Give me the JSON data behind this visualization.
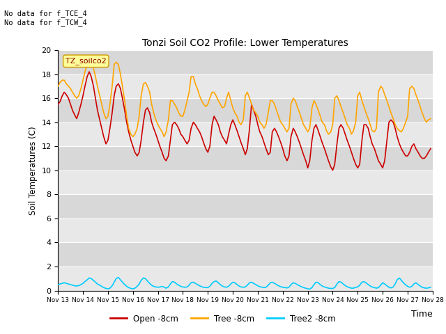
{
  "title": "Tonzi Soil CO2 Profile: Lower Temperatures",
  "xlabel": "Time",
  "ylabel": "Soil Temperatures (C)",
  "top_left_text": "No data for f_TCE_4\nNo data for f_TCW_4",
  "legend_label_text": "TZ_soilco2",
  "xlim_days": [
    13,
    28
  ],
  "ylim": [
    0,
    20
  ],
  "yticks": [
    0,
    2,
    4,
    6,
    8,
    10,
    12,
    14,
    16,
    18,
    20
  ],
  "xtick_labels": [
    "Nov 13",
    "Nov 14",
    "Nov 15",
    "Nov 16",
    "Nov 17",
    "Nov 18",
    "Nov 19",
    "Nov 20",
    "Nov 21",
    "Nov 22",
    "Nov 23",
    "Nov 24",
    "Nov 25",
    "Nov 26",
    "Nov 27",
    "Nov 28"
  ],
  "plot_bg_color": "#e8e8e8",
  "fig_bg_color": "#ffffff",
  "grid_color": "#ffffff",
  "stripe_color1": "#e8e8e8",
  "stripe_color2": "#d8d8d8",
  "open_color": "#cc0000",
  "tree_color": "#ffa500",
  "tree2_color": "#00ccff",
  "open_label": "Open -8cm",
  "tree_label": "Tree -8cm",
  "tree2_label": "Tree2 -8cm",
  "open_x": [
    13.0,
    13.08,
    13.17,
    13.25,
    13.33,
    13.42,
    13.5,
    13.58,
    13.67,
    13.75,
    13.83,
    13.92,
    14.0,
    14.08,
    14.17,
    14.25,
    14.33,
    14.42,
    14.5,
    14.58,
    14.67,
    14.75,
    14.83,
    14.92,
    15.0,
    15.08,
    15.17,
    15.25,
    15.33,
    15.42,
    15.5,
    15.58,
    15.67,
    15.75,
    15.83,
    15.92,
    16.0,
    16.08,
    16.17,
    16.25,
    16.33,
    16.42,
    16.5,
    16.58,
    16.67,
    16.75,
    16.83,
    16.92,
    17.0,
    17.08,
    17.17,
    17.25,
    17.33,
    17.42,
    17.5,
    17.58,
    17.67,
    17.75,
    17.83,
    17.92,
    18.0,
    18.08,
    18.17,
    18.25,
    18.33,
    18.42,
    18.5,
    18.58,
    18.67,
    18.75,
    18.83,
    18.92,
    19.0,
    19.08,
    19.17,
    19.25,
    19.33,
    19.42,
    19.5,
    19.58,
    19.67,
    19.75,
    19.83,
    19.92,
    20.0,
    20.08,
    20.17,
    20.25,
    20.33,
    20.42,
    20.5,
    20.58,
    20.67,
    20.75,
    20.83,
    20.92,
    21.0,
    21.08,
    21.17,
    21.25,
    21.33,
    21.42,
    21.5,
    21.58,
    21.67,
    21.75,
    21.83,
    21.92,
    22.0,
    22.08,
    22.17,
    22.25,
    22.33,
    22.42,
    22.5,
    22.58,
    22.67,
    22.75,
    22.83,
    22.92,
    23.0,
    23.08,
    23.17,
    23.25,
    23.33,
    23.42,
    23.5,
    23.58,
    23.67,
    23.75,
    23.83,
    23.92,
    24.0,
    24.08,
    24.17,
    24.25,
    24.33,
    24.42,
    24.5,
    24.58,
    24.67,
    24.75,
    24.83,
    24.92,
    25.0,
    25.08,
    25.17,
    25.25,
    25.33,
    25.42,
    25.5,
    25.58,
    25.67,
    25.75,
    25.83,
    25.92,
    26.0,
    26.08,
    26.17,
    26.25,
    26.33,
    26.42,
    26.5,
    26.58,
    26.67,
    26.75,
    26.83,
    26.92,
    27.0,
    27.08,
    27.17,
    27.25,
    27.33,
    27.42,
    27.5,
    27.58,
    27.67,
    27.75,
    27.83,
    27.92
  ],
  "open_y": [
    15.5,
    15.7,
    16.2,
    16.5,
    16.3,
    16.0,
    15.5,
    15.0,
    14.6,
    14.3,
    14.8,
    15.5,
    16.2,
    17.0,
    17.8,
    18.2,
    17.8,
    17.0,
    16.0,
    15.0,
    14.2,
    13.5,
    12.8,
    12.2,
    12.5,
    13.5,
    14.8,
    16.2,
    17.0,
    17.2,
    16.8,
    16.0,
    15.0,
    14.0,
    13.2,
    12.5,
    12.0,
    11.5,
    11.2,
    11.5,
    12.5,
    14.0,
    15.0,
    15.2,
    14.8,
    14.0,
    13.5,
    13.0,
    12.5,
    12.0,
    11.5,
    11.0,
    10.8,
    11.2,
    12.5,
    13.8,
    14.0,
    13.8,
    13.5,
    13.0,
    12.8,
    12.5,
    12.2,
    12.5,
    13.5,
    14.0,
    13.8,
    13.5,
    13.2,
    12.8,
    12.3,
    11.8,
    11.5,
    12.0,
    13.8,
    14.5,
    14.2,
    13.8,
    13.2,
    12.8,
    12.5,
    12.2,
    13.0,
    13.8,
    14.2,
    13.8,
    13.3,
    12.8,
    12.3,
    11.8,
    11.3,
    11.8,
    13.5,
    15.5,
    15.0,
    14.5,
    13.8,
    13.2,
    12.8,
    12.3,
    11.8,
    11.3,
    11.5,
    13.2,
    13.5,
    13.2,
    12.8,
    12.3,
    11.8,
    11.2,
    10.8,
    11.2,
    12.8,
    13.5,
    13.2,
    12.8,
    12.3,
    11.8,
    11.3,
    10.8,
    10.2,
    10.8,
    12.5,
    13.5,
    13.8,
    13.3,
    12.8,
    12.3,
    11.8,
    11.3,
    10.8,
    10.3,
    10.0,
    10.5,
    12.2,
    13.5,
    13.8,
    13.5,
    13.0,
    12.5,
    12.0,
    11.5,
    11.0,
    10.5,
    10.2,
    10.5,
    12.5,
    13.8,
    13.8,
    13.5,
    12.8,
    12.2,
    11.8,
    11.3,
    10.8,
    10.5,
    10.2,
    10.8,
    12.5,
    14.0,
    14.2,
    14.0,
    13.5,
    12.8,
    12.2,
    11.8,
    11.5,
    11.2,
    11.2,
    11.5,
    12.0,
    12.2,
    11.8,
    11.5,
    11.2,
    11.0,
    11.0,
    11.2,
    11.5,
    11.8
  ],
  "tree_x": [
    13.0,
    13.08,
    13.17,
    13.25,
    13.33,
    13.42,
    13.5,
    13.58,
    13.67,
    13.75,
    13.83,
    13.92,
    14.0,
    14.08,
    14.17,
    14.25,
    14.33,
    14.42,
    14.5,
    14.58,
    14.67,
    14.75,
    14.83,
    14.92,
    15.0,
    15.08,
    15.17,
    15.25,
    15.33,
    15.42,
    15.5,
    15.58,
    15.67,
    15.75,
    15.83,
    15.92,
    16.0,
    16.08,
    16.17,
    16.25,
    16.33,
    16.42,
    16.5,
    16.58,
    16.67,
    16.75,
    16.83,
    16.92,
    17.0,
    17.08,
    17.17,
    17.25,
    17.33,
    17.42,
    17.5,
    17.58,
    17.67,
    17.75,
    17.83,
    17.92,
    18.0,
    18.08,
    18.17,
    18.25,
    18.33,
    18.42,
    18.5,
    18.58,
    18.67,
    18.75,
    18.83,
    18.92,
    19.0,
    19.08,
    19.17,
    19.25,
    19.33,
    19.42,
    19.5,
    19.58,
    19.67,
    19.75,
    19.83,
    19.92,
    20.0,
    20.08,
    20.17,
    20.25,
    20.33,
    20.42,
    20.5,
    20.58,
    20.67,
    20.75,
    20.83,
    20.92,
    21.0,
    21.08,
    21.17,
    21.25,
    21.33,
    21.42,
    21.5,
    21.58,
    21.67,
    21.75,
    21.83,
    21.92,
    22.0,
    22.08,
    22.17,
    22.25,
    22.33,
    22.42,
    22.5,
    22.58,
    22.67,
    22.75,
    22.83,
    22.92,
    23.0,
    23.08,
    23.17,
    23.25,
    23.33,
    23.42,
    23.5,
    23.58,
    23.67,
    23.75,
    23.83,
    23.92,
    24.0,
    24.08,
    24.17,
    24.25,
    24.33,
    24.42,
    24.5,
    24.58,
    24.67,
    24.75,
    24.83,
    24.92,
    25.0,
    25.08,
    25.17,
    25.25,
    25.33,
    25.42,
    25.5,
    25.58,
    25.67,
    25.75,
    25.83,
    25.92,
    26.0,
    26.08,
    26.17,
    26.25,
    26.33,
    26.42,
    26.5,
    26.58,
    26.67,
    26.75,
    26.83,
    26.92,
    27.0,
    27.08,
    27.17,
    27.25,
    27.33,
    27.42,
    27.5,
    27.58,
    27.67,
    27.75,
    27.83,
    27.92
  ],
  "tree_y": [
    17.0,
    17.3,
    17.5,
    17.5,
    17.2,
    17.0,
    16.8,
    16.5,
    16.2,
    16.0,
    16.2,
    16.8,
    17.5,
    18.2,
    18.8,
    19.2,
    19.0,
    18.5,
    17.8,
    17.0,
    16.2,
    15.5,
    14.8,
    14.3,
    14.5,
    15.5,
    17.0,
    18.8,
    19.0,
    18.8,
    18.0,
    17.0,
    15.8,
    14.5,
    13.5,
    13.0,
    12.8,
    13.0,
    13.5,
    14.5,
    16.2,
    17.2,
    17.3,
    17.0,
    16.5,
    15.5,
    14.8,
    14.2,
    13.8,
    13.5,
    13.2,
    12.8,
    13.2,
    14.2,
    15.8,
    15.8,
    15.5,
    15.2,
    14.8,
    14.5,
    14.5,
    15.0,
    15.8,
    16.5,
    17.8,
    17.8,
    17.2,
    16.8,
    16.2,
    15.8,
    15.5,
    15.3,
    15.5,
    16.0,
    16.5,
    16.5,
    16.2,
    15.8,
    15.5,
    15.2,
    15.3,
    16.0,
    16.5,
    15.8,
    15.2,
    14.8,
    14.5,
    14.0,
    13.8,
    14.2,
    16.2,
    16.5,
    16.0,
    15.5,
    15.0,
    14.8,
    14.5,
    14.0,
    13.8,
    13.5,
    13.8,
    14.8,
    15.8,
    15.8,
    15.5,
    15.0,
    14.5,
    14.0,
    13.8,
    13.5,
    13.2,
    13.5,
    15.5,
    16.0,
    15.8,
    15.3,
    14.8,
    14.3,
    13.8,
    13.5,
    13.2,
    13.5,
    15.2,
    15.8,
    15.5,
    15.0,
    14.5,
    14.0,
    13.8,
    13.3,
    13.0,
    13.2,
    13.8,
    16.0,
    16.2,
    15.8,
    15.3,
    14.8,
    14.3,
    13.8,
    13.5,
    13.0,
    13.3,
    14.0,
    16.2,
    16.5,
    15.8,
    15.3,
    14.8,
    14.3,
    13.8,
    13.3,
    13.2,
    13.5,
    16.5,
    17.0,
    16.8,
    16.3,
    15.8,
    15.3,
    14.8,
    14.3,
    13.8,
    13.5,
    13.3,
    13.2,
    13.5,
    14.0,
    14.5,
    16.8,
    17.0,
    16.8,
    16.3,
    15.8,
    15.3,
    14.8,
    14.3,
    14.0,
    14.2,
    14.3
  ],
  "tree2_x": [
    13.0,
    13.08,
    13.17,
    13.25,
    13.33,
    13.42,
    13.5,
    13.58,
    13.67,
    13.75,
    13.83,
    13.92,
    14.0,
    14.08,
    14.17,
    14.25,
    14.33,
    14.42,
    14.5,
    14.58,
    14.67,
    14.75,
    14.83,
    14.92,
    15.0,
    15.08,
    15.17,
    15.25,
    15.33,
    15.42,
    15.5,
    15.58,
    15.67,
    15.75,
    15.83,
    15.92,
    16.0,
    16.08,
    16.17,
    16.25,
    16.33,
    16.42,
    16.5,
    16.58,
    16.67,
    16.75,
    16.83,
    16.92,
    17.0,
    17.08,
    17.17,
    17.25,
    17.33,
    17.42,
    17.5,
    17.58,
    17.67,
    17.75,
    17.83,
    17.92,
    18.0,
    18.08,
    18.17,
    18.25,
    18.33,
    18.42,
    18.5,
    18.58,
    18.67,
    18.75,
    18.83,
    18.92,
    19.0,
    19.08,
    19.17,
    19.25,
    19.33,
    19.42,
    19.5,
    19.58,
    19.67,
    19.75,
    19.83,
    19.92,
    20.0,
    20.08,
    20.17,
    20.25,
    20.33,
    20.42,
    20.5,
    20.58,
    20.67,
    20.75,
    20.83,
    20.92,
    21.0,
    21.08,
    21.17,
    21.25,
    21.33,
    21.42,
    21.5,
    21.58,
    21.67,
    21.75,
    21.83,
    21.92,
    22.0,
    22.08,
    22.17,
    22.25,
    22.33,
    22.42,
    22.5,
    22.58,
    22.67,
    22.75,
    22.83,
    22.92,
    23.0,
    23.08,
    23.17,
    23.25,
    23.33,
    23.42,
    23.5,
    23.58,
    23.67,
    23.75,
    23.83,
    23.92,
    24.0,
    24.08,
    24.17,
    24.25,
    24.33,
    24.42,
    24.5,
    24.58,
    24.67,
    24.75,
    24.83,
    24.92,
    25.0,
    25.08,
    25.17,
    25.25,
    25.33,
    25.42,
    25.5,
    25.58,
    25.67,
    25.75,
    25.83,
    25.92,
    26.0,
    26.08,
    26.17,
    26.25,
    26.33,
    26.42,
    26.5,
    26.58,
    26.67,
    26.75,
    26.83,
    26.92,
    27.0,
    27.08,
    27.17,
    27.25,
    27.33,
    27.42,
    27.5,
    27.58,
    27.67,
    27.75,
    27.83,
    27.92
  ],
  "tree2_y": [
    0.5,
    0.55,
    0.6,
    0.65,
    0.6,
    0.55,
    0.5,
    0.45,
    0.4,
    0.38,
    0.42,
    0.5,
    0.6,
    0.75,
    0.9,
    1.05,
    1.0,
    0.85,
    0.7,
    0.55,
    0.45,
    0.35,
    0.25,
    0.18,
    0.15,
    0.2,
    0.4,
    0.7,
    1.0,
    1.1,
    0.9,
    0.7,
    0.5,
    0.35,
    0.25,
    0.18,
    0.15,
    0.2,
    0.35,
    0.55,
    0.85,
    1.05,
    1.0,
    0.8,
    0.6,
    0.45,
    0.35,
    0.3,
    0.28,
    0.3,
    0.35,
    0.28,
    0.2,
    0.3,
    0.55,
    0.75,
    0.7,
    0.55,
    0.45,
    0.35,
    0.3,
    0.28,
    0.3,
    0.45,
    0.65,
    0.7,
    0.6,
    0.5,
    0.4,
    0.32,
    0.28,
    0.25,
    0.25,
    0.35,
    0.6,
    0.75,
    0.8,
    0.65,
    0.5,
    0.38,
    0.3,
    0.28,
    0.35,
    0.55,
    0.7,
    0.65,
    0.5,
    0.38,
    0.3,
    0.28,
    0.3,
    0.45,
    0.65,
    0.7,
    0.6,
    0.5,
    0.4,
    0.32,
    0.28,
    0.25,
    0.28,
    0.45,
    0.65,
    0.7,
    0.6,
    0.5,
    0.4,
    0.32,
    0.28,
    0.25,
    0.22,
    0.28,
    0.5,
    0.65,
    0.6,
    0.5,
    0.4,
    0.32,
    0.25,
    0.2,
    0.15,
    0.12,
    0.25,
    0.5,
    0.7,
    0.65,
    0.5,
    0.38,
    0.3,
    0.25,
    0.2,
    0.18,
    0.18,
    0.25,
    0.55,
    0.75,
    0.7,
    0.55,
    0.42,
    0.32,
    0.25,
    0.2,
    0.2,
    0.28,
    0.3,
    0.45,
    0.7,
    0.75,
    0.65,
    0.5,
    0.38,
    0.3,
    0.25,
    0.2,
    0.25,
    0.45,
    0.65,
    0.55,
    0.4,
    0.28,
    0.22,
    0.3,
    0.55,
    0.9,
    1.05,
    0.85,
    0.65,
    0.48,
    0.35,
    0.28,
    0.35,
    0.55,
    0.65,
    0.5,
    0.38,
    0.28,
    0.22,
    0.2,
    0.22,
    0.28
  ]
}
